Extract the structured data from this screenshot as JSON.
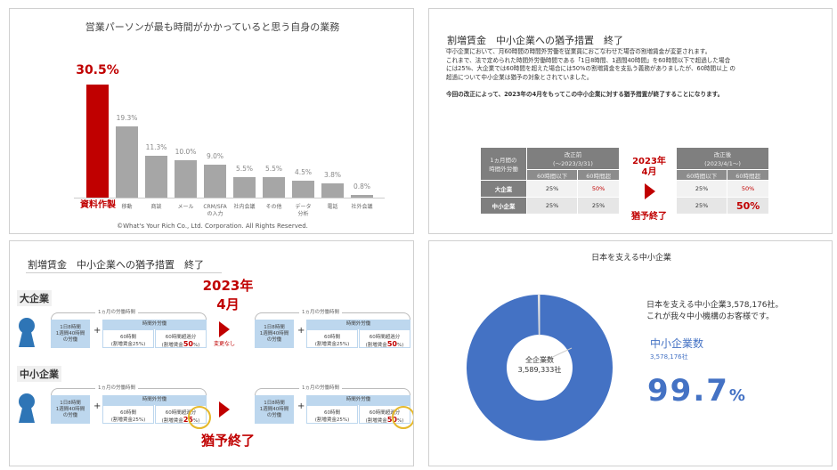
{
  "slide1": {
    "title": "営業パーソンが最も時間がかかっていると思う自身の業務",
    "copyright": "©What's Your Rich Co., Ltd. Corporation. All Rights Reserved.",
    "chart_data": {
      "type": "bar",
      "categories": [
        "資料作製",
        "移動",
        "商談",
        "メール",
        "CRM/SFA\nの入力",
        "社内会議",
        "その他",
        "データ\n分析",
        "電話",
        "社外会議"
      ],
      "values": [
        30.5,
        19.3,
        11.3,
        10.0,
        9.0,
        5.5,
        5.5,
        4.5,
        3.8,
        0.8
      ],
      "value_labels": [
        "30.5",
        "19.3",
        "11.3",
        "10.0",
        "9.0",
        "5.5",
        "5.5",
        "4.5",
        "3.8",
        "0.8"
      ],
      "unit": "%",
      "highlight_index": 0,
      "colors": {
        "highlight": "#c00000",
        "default": "#a6a6a6"
      }
    }
  },
  "slide2": {
    "title": "割増賃金　中小企業への猶予措置　終了",
    "paragraph1": [
      "中小企業において、月60時間の時間外労働を従業員におこなわせた場合の割増賃金が変更されます。",
      "これまで、法で定められた時間外労働時間である「1日8時間、1週間40時間」を60時間以下で超過した場合",
      "には25%、大企業では60時間を超えた場合には50%の割増賃金を支払う義務がありましたが、60時間以上 の",
      "超過について中小企業は猶予の対象とされていました。"
    ],
    "paragraph2": "今回の改正によって、2023年の4月をもってこの中小企業に対する猶予措置が終了することになります。",
    "table": {
      "corner": "1ヵ月間の\n時間外労働",
      "before": "改正前\n(～2023/3/31)",
      "after": "改正後\n(2023/4/1～)",
      "sub": [
        "60時間以下",
        "60時間超"
      ],
      "rows": [
        {
          "label": "大企業",
          "before": [
            "25%",
            "50%"
          ],
          "after": [
            "25%",
            "50%"
          ]
        },
        {
          "label": "中小企業",
          "before": [
            "25%",
            "25%"
          ],
          "after": [
            "25%",
            "50%"
          ]
        }
      ]
    },
    "middle_date": "2023年\n4月",
    "middle_caption": "猶予終了"
  },
  "slide3": {
    "title": "割増賃金　中小企業への猶予措置　終了",
    "date": "2023年\n4月",
    "no_change": "変更なし",
    "end_label": "猶予終了",
    "sections": [
      {
        "label": "大企業",
        "before_rate": "50",
        "after_rate": "50"
      },
      {
        "label": "中小企業",
        "before_rate": "25",
        "after_rate": "50"
      }
    ],
    "brace_label": "1ヵ月の労働時間",
    "base_hours": "1日8時間\n1週間40時間\nの労働",
    "overtime": "時間外労働",
    "sixty": "60時間",
    "sixty_rate": "(割増賃金25%)",
    "over_sixty": "60時間超過分",
    "over_rate_prefix": "(割増賃金",
    "pct": "%)",
    "plus": "+",
    "person_color": "#2e75b6"
  },
  "slide4": {
    "title": "日本を支える中小企業",
    "description": [
      "日本を支える中小企業3,578,176社。",
      "これが我々中小機構のお客様です。"
    ],
    "series_label": "中小企業数",
    "series_value": "3,578,176社",
    "percent": "99.7",
    "percent_unit": "%",
    "center_label": "全企業数",
    "center_value": "3,589,333社",
    "chart_data": {
      "type": "pie",
      "values": [
        3578176,
        11157
      ],
      "total": 3589333,
      "colors": [
        "#4472c4",
        "#ffffff"
      ]
    }
  }
}
